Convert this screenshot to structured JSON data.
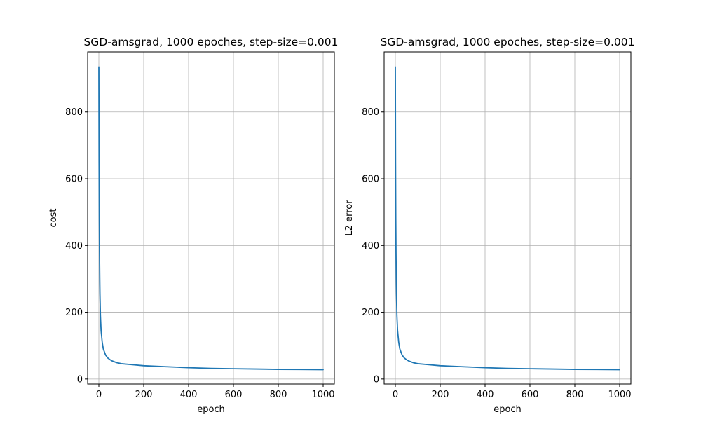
{
  "colors": {
    "series": "#1f77b4",
    "grid": "#b0b0b0",
    "background": "#ffffff"
  },
  "chart_data": [
    {
      "type": "line",
      "title": "SGD-amsgrad, 1000 epoches, step-size=0.001",
      "xlabel": "epoch",
      "ylabel": "cost",
      "xlim": [
        -50,
        1050
      ],
      "ylim": [
        -15,
        980
      ],
      "xticks": [
        0,
        200,
        400,
        600,
        800,
        1000
      ],
      "yticks": [
        0,
        200,
        400,
        600,
        800
      ],
      "xtick_labels": [
        "0",
        "200",
        "400",
        "600",
        "800",
        "1000"
      ],
      "ytick_labels": [
        "0",
        "200",
        "400",
        "600",
        "800"
      ],
      "grid": true,
      "series": [
        {
          "x": [
            0,
            1,
            2,
            3,
            4,
            5,
            7,
            10,
            15,
            20,
            30,
            40,
            50,
            60,
            80,
            100,
            150,
            200,
            300,
            400,
            500,
            600,
            700,
            800,
            900,
            1000
          ],
          "y": [
            935,
            650,
            480,
            380,
            310,
            255,
            190,
            145,
            110,
            90,
            72,
            63,
            58,
            54,
            49,
            46,
            43,
            40,
            37,
            34,
            32,
            31,
            30,
            29,
            28.5,
            28
          ]
        }
      ]
    },
    {
      "type": "line",
      "title": "SGD-amsgrad, 1000 epoches, step-size=0.001",
      "xlabel": "epoch",
      "ylabel": "L2 error",
      "xlim": [
        -50,
        1050
      ],
      "ylim": [
        -15,
        980
      ],
      "xticks": [
        0,
        200,
        400,
        600,
        800,
        1000
      ],
      "yticks": [
        0,
        200,
        400,
        600,
        800
      ],
      "xtick_labels": [
        "0",
        "200",
        "400",
        "600",
        "800",
        "1000"
      ],
      "ytick_labels": [
        "0",
        "200",
        "400",
        "600",
        "800"
      ],
      "grid": true,
      "series": [
        {
          "x": [
            0,
            1,
            2,
            3,
            4,
            5,
            7,
            10,
            15,
            20,
            30,
            40,
            50,
            60,
            80,
            100,
            150,
            200,
            300,
            400,
            500,
            600,
            700,
            800,
            900,
            1000
          ],
          "y": [
            935,
            650,
            480,
            380,
            310,
            255,
            190,
            145,
            110,
            90,
            72,
            63,
            58,
            54,
            49,
            46,
            43,
            40,
            37,
            34,
            32,
            31,
            30,
            29,
            28.5,
            28
          ]
        }
      ]
    }
  ]
}
